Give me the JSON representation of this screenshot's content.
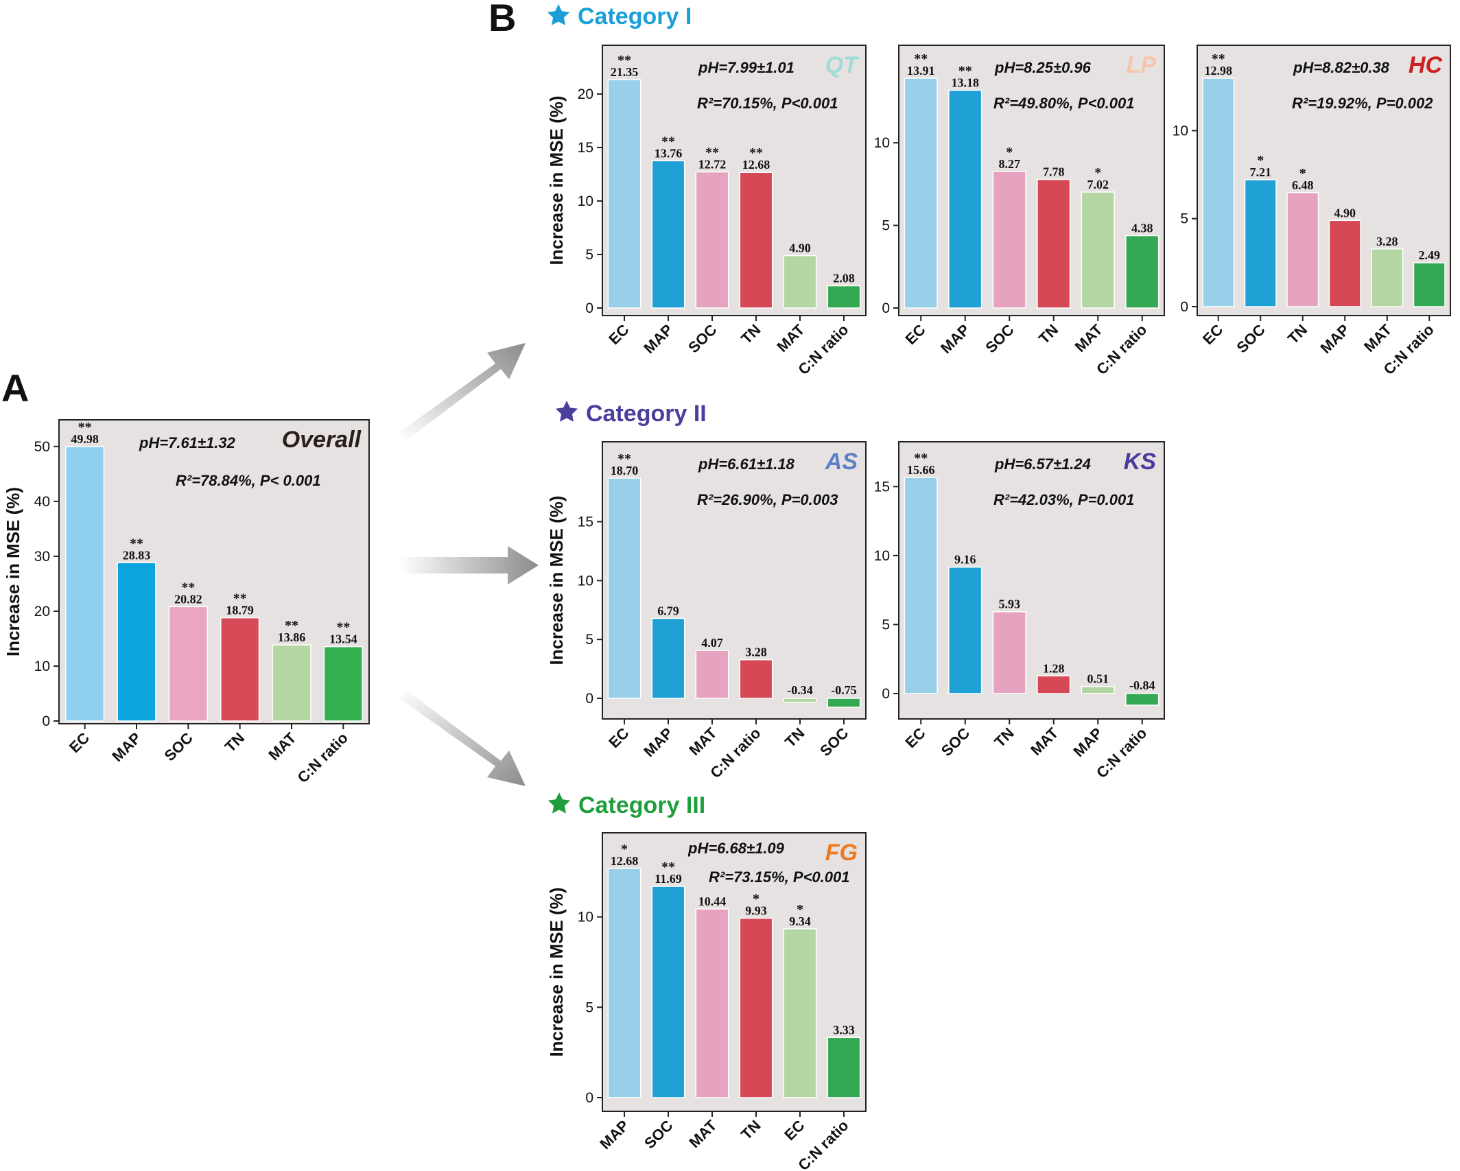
{
  "figure": {
    "panel_letters": [
      "A",
      "B"
    ],
    "categories": [
      {
        "label": "Category I",
        "color": "#1a9fd9"
      },
      {
        "label": "Category II",
        "color": "#4a3f9c"
      },
      {
        "label": "Category III",
        "color": "#1f9e3e"
      }
    ]
  },
  "colors": {
    "EC": "#98d0e9",
    "MAP": "#1fa1d5",
    "SOC": "#e6a3bf",
    "TN": "#d64856",
    "MAT": "#b4d6a3",
    "C:N ratio": "#34a852"
  },
  "chart_data": [
    {
      "id": "overall",
      "type": "bar",
      "title": "Overall",
      "title_color": "#2a1d1d",
      "stat_ph": "pH=7.61±1.32",
      "stat_ph_color": "#222222",
      "stat_r2": "R²=78.84%, P< 0.001",
      "ylabel": "Increase in MSE (%)",
      "ylim": [
        0,
        50
      ],
      "yticks": [
        0,
        10,
        20,
        30,
        40,
        50
      ],
      "categories": [
        "EC",
        "MAP",
        "SOC",
        "TN",
        "MAT",
        "C:N ratio"
      ],
      "values": [
        49.98,
        28.83,
        20.82,
        18.79,
        13.86,
        13.54
      ],
      "labels": [
        "49.98",
        "28.83",
        "20.82",
        "18.79",
        "13.86",
        "13.54"
      ],
      "significance": [
        "**",
        "**",
        "**",
        "**",
        "**",
        "**"
      ],
      "bar_colors": [
        "#8fd0ee",
        "#0ba4dd",
        "#eaa5c2",
        "#d94a58",
        "#b5d7a2",
        "#33b04e"
      ]
    },
    {
      "id": "qt",
      "type": "bar",
      "title": "QT",
      "title_color": "#9fdcd8",
      "stat_ph": "pH=7.99±1.01",
      "stat_ph_color": "#f0a020",
      "stat_r2": "R²=70.15%, P<0.001",
      "ylabel": "Increase in MSE (%)",
      "ylim": [
        0,
        21.35
      ],
      "yticks": [
        0,
        5,
        10,
        15,
        20
      ],
      "categories": [
        "EC",
        "MAP",
        "SOC",
        "TN",
        "MAT",
        "C:N ratio"
      ],
      "values": [
        21.35,
        13.76,
        12.72,
        12.68,
        4.9,
        2.08
      ],
      "labels": [
        "21.35",
        "13.76",
        "12.72",
        "12.68",
        "4.90",
        "2.08"
      ],
      "significance": [
        "**",
        "**",
        "**",
        "**",
        "",
        ""
      ],
      "bar_colors": [
        "#98d0e9",
        "#1fa1d5",
        "#e6a3bf",
        "#d64856",
        "#b4d6a3",
        "#34a852"
      ]
    },
    {
      "id": "lp",
      "type": "bar",
      "title": "LP",
      "title_color": "#f6c5ae",
      "stat_ph": "pH=8.25±0.96",
      "stat_ph_color": "#f0a020",
      "stat_r2": "R²=49.80%, P<0.001",
      "ylabel": "",
      "ylim": [
        0,
        13.91
      ],
      "yticks": [
        0,
        5,
        10
      ],
      "categories": [
        "EC",
        "MAP",
        "SOC",
        "TN",
        "MAT",
        "C:N ratio"
      ],
      "values": [
        13.91,
        13.18,
        8.27,
        7.78,
        7.02,
        4.38
      ],
      "labels": [
        "13.91",
        "13.18",
        "8.27",
        "7.78",
        "7.02",
        "4.38"
      ],
      "significance": [
        "**",
        "**",
        "*",
        "",
        "*",
        ""
      ],
      "bar_colors": [
        "#98d0e9",
        "#1fa1d5",
        "#e6a3bf",
        "#d64856",
        "#b4d6a3",
        "#34a852"
      ]
    },
    {
      "id": "hc",
      "type": "bar",
      "title": "HC",
      "title_color": "#cc1f1f",
      "stat_ph": "pH=8.82±0.38",
      "stat_ph_color": "#d62020",
      "stat_r2": "R²=19.92%, P=0.002",
      "ylabel": "",
      "ylim": [
        0,
        12.98
      ],
      "yticks": [
        0,
        5,
        10
      ],
      "categories": [
        "EC",
        "SOC",
        "TN",
        "MAP",
        "MAT",
        "C:N ratio"
      ],
      "values": [
        12.98,
        7.21,
        6.48,
        4.9,
        3.28,
        2.49
      ],
      "labels": [
        "12.98",
        "7.21",
        "6.48",
        "4.90",
        "3.28",
        "2.49"
      ],
      "significance": [
        "**",
        "*",
        "*",
        "",
        "",
        ""
      ],
      "bar_colors": [
        "#98d0e9",
        "#1fa1d5",
        "#e6a3bf",
        "#d64856",
        "#b4d6a3",
        "#34a852"
      ]
    },
    {
      "id": "as",
      "type": "bar",
      "title": "AS",
      "title_color": "#5b7ec4",
      "stat_ph": "pH=6.61±1.18",
      "stat_ph_color": "#222222",
      "stat_r2": "R²=26.90%, P=0.003",
      "ylabel": "Increase in MSE (%)",
      "ylim": [
        -0.75,
        18.7
      ],
      "yticks": [
        0,
        5,
        10,
        15
      ],
      "categories": [
        "EC",
        "MAP",
        "MAT",
        "C:N ratio",
        "TN",
        "SOC"
      ],
      "values": [
        18.7,
        6.79,
        4.07,
        3.28,
        -0.34,
        -0.75
      ],
      "labels": [
        "18.70",
        "6.79",
        "4.07",
        "3.28",
        "-0.34",
        "-0.75"
      ],
      "significance": [
        "**",
        "",
        "",
        "",
        "",
        ""
      ],
      "bar_colors": [
        "#98d0e9",
        "#1fa1d5",
        "#e6a3bf",
        "#d64856",
        "#b4d6a3",
        "#34a852"
      ]
    },
    {
      "id": "ks",
      "type": "bar",
      "title": "KS",
      "title_color": "#4a3a9e",
      "stat_ph": "pH=6.57±1.24",
      "stat_ph_color": "#222222",
      "stat_r2": "R²=42.03%, P=0.001",
      "ylabel": "",
      "ylim": [
        -0.84,
        15.66
      ],
      "yticks": [
        0,
        5,
        10,
        15
      ],
      "categories": [
        "EC",
        "SOC",
        "TN",
        "MAT",
        "MAP",
        "C:N ratio"
      ],
      "values": [
        15.66,
        9.16,
        5.93,
        1.28,
        0.51,
        -0.84
      ],
      "labels": [
        "15.66",
        "9.16",
        "5.93",
        "1.28",
        "0.51",
        "-0.84"
      ],
      "significance": [
        "**",
        "",
        "",
        "",
        "",
        ""
      ],
      "bar_colors": [
        "#98d0e9",
        "#1fa1d5",
        "#e6a3bf",
        "#d64856",
        "#b4d6a3",
        "#34a852"
      ]
    },
    {
      "id": "fg",
      "type": "bar",
      "title": "FG",
      "title_color": "#ee7a1f",
      "stat_ph": "pH=6.68±1.09",
      "stat_ph_color": "#222222",
      "stat_r2": "R²=73.15%, P<0.001",
      "ylabel": "Increase in MSE (%)",
      "ylim": [
        0,
        12.68
      ],
      "yticks": [
        0,
        5,
        10
      ],
      "categories": [
        "MAP",
        "SOC",
        "MAT",
        "TN",
        "EC",
        "C:N ratio"
      ],
      "values": [
        12.68,
        11.69,
        10.44,
        9.93,
        9.34,
        3.33
      ],
      "labels": [
        "12.68",
        "11.69",
        "10.44",
        "9.93",
        "9.34",
        "3.33"
      ],
      "significance": [
        "*",
        "**",
        "",
        "*",
        "*",
        ""
      ],
      "bar_colors": [
        "#98d0e9",
        "#1fa1d5",
        "#e6a3bf",
        "#d64856",
        "#b4d6a3",
        "#34a852"
      ]
    }
  ]
}
